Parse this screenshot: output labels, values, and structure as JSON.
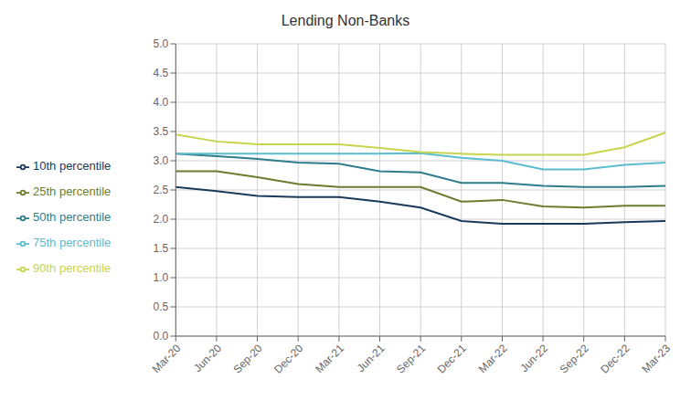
{
  "chart_data": {
    "type": "line",
    "title": "Lending Non-Banks",
    "categories": [
      "Mar-20",
      "Jun-20",
      "Sep-20",
      "Dec-20",
      "Mar-21",
      "Jun-21",
      "Sep-21",
      "Dec-21",
      "Mar-22",
      "Jun-22",
      "Sep-22",
      "Dec-22",
      "Mar-23"
    ],
    "series": [
      {
        "name": "10th percentile",
        "color": "#1a3a5c",
        "values": [
          2.55,
          2.48,
          2.4,
          2.38,
          2.38,
          2.3,
          2.2,
          1.97,
          1.92,
          1.92,
          1.92,
          1.95,
          1.97
        ]
      },
      {
        "name": "25th percentile",
        "color": "#6b7c2e",
        "values": [
          2.82,
          2.82,
          2.72,
          2.6,
          2.55,
          2.55,
          2.55,
          2.3,
          2.33,
          2.22,
          2.2,
          2.23,
          2.23
        ]
      },
      {
        "name": "50th percentile",
        "color": "#2e7d8c",
        "values": [
          3.12,
          3.08,
          3.03,
          2.97,
          2.95,
          2.82,
          2.8,
          2.62,
          2.62,
          2.57,
          2.55,
          2.55,
          2.57
        ]
      },
      {
        "name": "75th percentile",
        "color": "#5bbcd0",
        "values": [
          3.12,
          3.12,
          3.12,
          3.12,
          3.12,
          3.12,
          3.13,
          3.05,
          3.0,
          2.85,
          2.85,
          2.93,
          2.97
        ]
      },
      {
        "name": "90th percentile",
        "color": "#c8d44e",
        "values": [
          3.45,
          3.33,
          3.28,
          3.28,
          3.28,
          3.22,
          3.15,
          3.12,
          3.1,
          3.1,
          3.1,
          3.23,
          3.48
        ]
      }
    ],
    "ylim": [
      0.0,
      5.0
    ],
    "yticks": [
      {
        "value": 0,
        "label": "0.0"
      },
      0.5,
      {
        "value": 1,
        "label": "1.0"
      },
      1.5,
      {
        "value": 2,
        "label": "2.0"
      },
      2.5,
      {
        "value": 3,
        "label": "3.0"
      },
      3.5,
      {
        "value": 4,
        "label": "4.0"
      },
      4.5,
      {
        "value": 5,
        "label": "5.0"
      }
    ],
    "grid": true,
    "legend": "left"
  }
}
